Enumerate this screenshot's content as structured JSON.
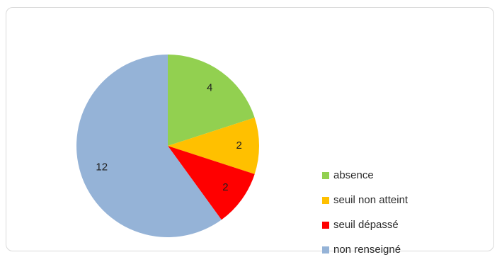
{
  "chart_data": {
    "type": "pie",
    "title": "",
    "categories": [
      "absence",
      "seuil non atteint",
      "seuil dépassé",
      "non renseigné"
    ],
    "values": [
      4,
      2,
      2,
      12
    ],
    "colors": [
      "#92d050",
      "#ffc000",
      "#ff0000",
      "#95b3d7"
    ],
    "data_labels": [
      "4",
      "2",
      "2",
      "12"
    ],
    "start_angle_deg": 0,
    "direction": "clockwise",
    "legend_position": "right"
  },
  "legend": {
    "items": [
      {
        "label": "absence"
      },
      {
        "label": "seuil non atteint"
      },
      {
        "label": "seuil dépassé"
      },
      {
        "label": "non renseigné"
      }
    ]
  }
}
